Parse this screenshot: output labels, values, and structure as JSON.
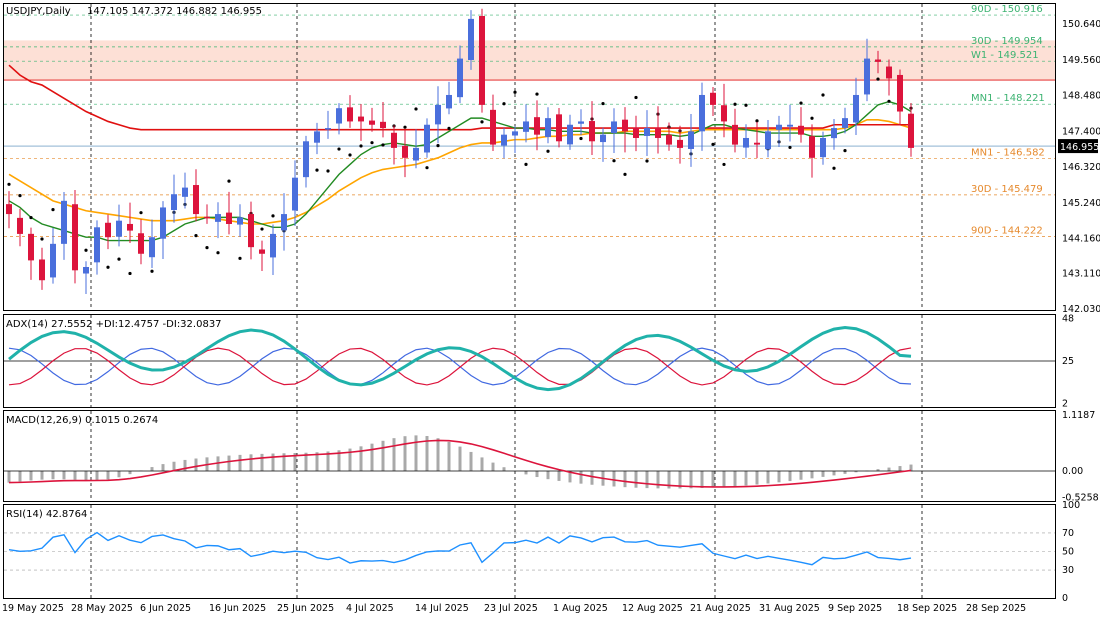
{
  "chart_data": [
    {
      "panel": "price",
      "type": "candlestick",
      "title": "USDJPY,Daily",
      "ohlc_readout": "147.105 147.372 146.882 146.955",
      "current_price_label": "146.955",
      "ylim": [
        142.0,
        151.25
      ],
      "y_ticks": [
        "150.640",
        "149.560",
        "148.480",
        "147.400",
        "146.320",
        "145.240",
        "144.160",
        "143.110",
        "142.030"
      ],
      "y_tick_values": [
        150.64,
        149.56,
        148.48,
        147.4,
        146.32,
        145.24,
        144.16,
        143.11,
        142.03
      ],
      "x_dates": [
        "19 May 2025",
        "28 May 2025",
        "6 Jun 2025",
        "16 Jun 2025",
        "25 Jun 2025",
        "4 Jul 2025",
        "14 Jul 2025",
        "23 Jul 2025",
        "1 Aug 2025",
        "12 Aug 2025",
        "21 Aug 2025",
        "31 Aug 2025",
        "9 Sep 2025",
        "18 Sep 2025",
        "28 Sep 2025"
      ],
      "close_path": [
        144.9,
        144.3,
        143.5,
        142.9,
        144.0,
        145.3,
        143.2,
        143.3,
        144.5,
        144.2,
        144.7,
        144.4,
        143.7,
        144.2,
        145.1,
        145.5,
        145.7,
        144.9,
        144.8,
        144.9,
        144.6,
        144.8,
        143.9,
        143.7,
        144.3,
        144.9,
        146.0,
        147.1,
        147.4,
        147.5,
        148.1,
        147.7,
        147.7,
        147.6,
        147.5,
        146.9,
        146.6,
        146.9,
        147.6,
        148.2,
        148.5,
        149.6,
        150.8,
        148.2,
        147.0,
        147.3,
        147.4,
        147.7,
        147.3,
        147.8,
        147.1,
        147.6,
        147.7,
        147.1,
        147.3,
        147.7,
        147.4,
        147.2,
        147.5,
        147.2,
        147.0,
        146.9,
        147.4,
        148.5,
        148.2,
        147.7,
        147.0,
        147.2,
        147.0,
        147.4,
        147.6,
        147.6,
        147.3,
        146.6,
        147.2,
        147.5,
        147.8,
        148.5,
        149.6,
        149.5,
        149.0,
        148.0,
        146.9
      ],
      "sma_red_200_path": [
        149.4,
        149.1,
        148.9,
        148.8,
        148.6,
        148.4,
        148.2,
        148.0,
        147.85,
        147.7,
        147.6,
        147.5,
        147.45,
        147.45,
        147.45,
        147.45,
        147.45,
        147.45,
        147.45,
        147.45,
        147.45,
        147.45,
        147.45,
        147.45,
        147.45,
        147.45,
        147.45,
        147.45,
        147.45,
        147.45,
        147.45,
        147.45,
        147.45,
        147.45,
        147.45,
        147.45,
        147.45,
        147.45,
        147.45,
        147.45,
        147.45,
        147.45,
        147.45,
        147.5,
        147.5,
        147.5,
        147.5,
        147.5,
        147.5,
        147.5,
        147.5,
        147.5,
        147.5,
        147.5,
        147.5,
        147.5,
        147.5,
        147.5,
        147.5,
        147.5,
        147.5,
        147.5,
        147.5,
        147.5,
        147.5,
        147.5,
        147.5,
        147.5,
        147.5,
        147.5,
        147.5,
        147.5,
        147.5,
        147.5,
        147.5,
        147.6,
        147.6,
        147.6,
        147.6,
        147.6,
        147.6,
        147.6,
        147.6
      ],
      "sma_orange_100_path": [
        146.1,
        145.9,
        145.7,
        145.5,
        145.3,
        145.2,
        145.1,
        145.0,
        144.95,
        144.9,
        144.85,
        144.8,
        144.75,
        144.7,
        144.7,
        144.7,
        144.75,
        144.8,
        144.8,
        144.75,
        144.7,
        144.65,
        144.6,
        144.6,
        144.65,
        144.7,
        144.8,
        144.95,
        145.15,
        145.35,
        145.6,
        145.8,
        146.0,
        146.15,
        146.25,
        146.3,
        146.35,
        146.4,
        146.5,
        146.6,
        146.75,
        146.9,
        147.0,
        147.05,
        147.05,
        147.1,
        147.15,
        147.15,
        147.2,
        147.25,
        147.25,
        147.3,
        147.3,
        147.35,
        147.35,
        147.35,
        147.4,
        147.4,
        147.4,
        147.4,
        147.4,
        147.35,
        147.4,
        147.45,
        147.45,
        147.45,
        147.45,
        147.45,
        147.45,
        147.45,
        147.45,
        147.45,
        147.45,
        147.45,
        147.45,
        147.45,
        147.5,
        147.6,
        147.75,
        147.75,
        147.7,
        147.6,
        147.5
      ],
      "sma_green_20_path": [
        145.3,
        145.1,
        144.8,
        144.6,
        144.5,
        144.4,
        144.3,
        144.2,
        144.2,
        144.1,
        144.1,
        144.1,
        144.1,
        144.1,
        144.2,
        144.4,
        144.6,
        144.7,
        144.8,
        144.8,
        144.8,
        144.8,
        144.7,
        144.6,
        144.5,
        144.5,
        144.6,
        144.9,
        145.3,
        145.7,
        146.1,
        146.4,
        146.7,
        146.9,
        147.0,
        147.05,
        147.0,
        146.95,
        147.0,
        147.2,
        147.4,
        147.6,
        147.8,
        147.8,
        147.7,
        147.6,
        147.5,
        147.5,
        147.45,
        147.45,
        147.4,
        147.4,
        147.4,
        147.35,
        147.35,
        147.35,
        147.35,
        147.3,
        147.3,
        147.3,
        147.3,
        147.25,
        147.3,
        147.45,
        147.6,
        147.6,
        147.5,
        147.45,
        147.4,
        147.35,
        147.35,
        147.35,
        147.35,
        147.25,
        147.25,
        147.3,
        147.4,
        147.6,
        147.9,
        148.2,
        148.3,
        148.2,
        148.0
      ],
      "hlines": [
        {
          "label": "90D - 150.916",
          "value": 150.916,
          "color": "#3cb371"
        },
        {
          "label": "30D - 149.954",
          "value": 149.954,
          "color": "#3cb371"
        },
        {
          "label": "W1 - 149.521",
          "value": 149.521,
          "color": "#3cb371"
        },
        {
          "label": "MN1 - 148.221",
          "value": 148.221,
          "color": "#3cb371"
        },
        {
          "label": "MN1 - 146.582",
          "value": 146.582,
          "color": "#e68a2e"
        },
        {
          "label": "30D - 145.479",
          "value": 145.479,
          "color": "#e68a2e"
        },
        {
          "label": "90D - 144.222",
          "value": 144.222,
          "color": "#e68a2e"
        }
      ],
      "resistance_zone": [
        148.95,
        150.15
      ],
      "colors": {
        "up": "#4a6fdc",
        "down": "#dc143c",
        "sma200": "#e01010",
        "sma100": "#ffa500",
        "sma20": "#228b22",
        "psar": "#000000",
        "zone": "#fde0d6",
        "current": "#4682b4"
      }
    },
    {
      "panel": "adx",
      "type": "line",
      "title": "ADX(14) 27.5552 +DI:12.4757 -DI:32.0837",
      "y_ticks": [
        "48",
        "25",
        "2"
      ],
      "ylim": [
        0,
        50
      ],
      "current_label": "25",
      "colors": {
        "adx": "#20b2aa",
        "plus_di": "#4169e1",
        "minus_di": "#dc143c"
      }
    },
    {
      "panel": "macd",
      "type": "bar",
      "title": "MACD(12,26,9) 0.1015 0.2674",
      "y_ticks": [
        "1.1187",
        "0.00",
        "-0.5258"
      ],
      "ylim": [
        -0.6,
        1.2
      ],
      "current_label": "0.00",
      "colors": {
        "hist": "#a9a9a9",
        "signal": "#dc143c"
      }
    },
    {
      "panel": "rsi",
      "type": "line",
      "title": "RSI(14) 42.8764",
      "y_ticks": [
        "100",
        "70",
        "50",
        "30",
        "0"
      ],
      "ylim": [
        0,
        100
      ],
      "levels": [
        70,
        50,
        30
      ],
      "colors": {
        "rsi": "#1e90ff",
        "level": "#a0a0a0"
      }
    }
  ]
}
